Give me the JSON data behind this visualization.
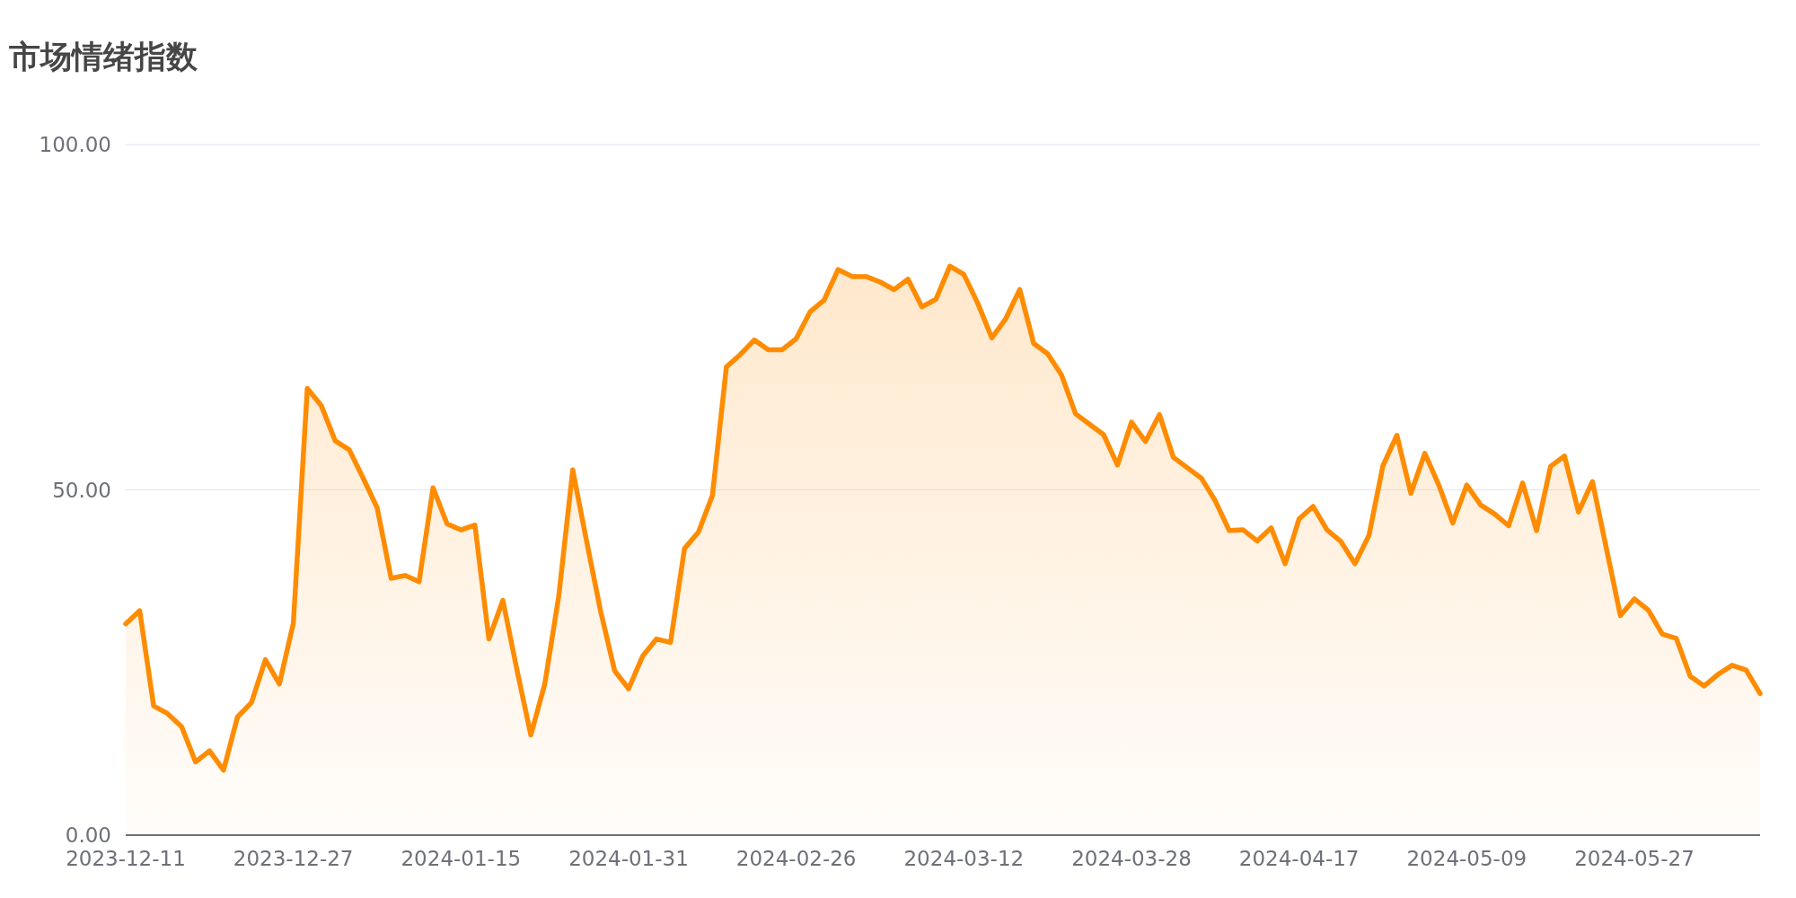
{
  "chart_data": {
    "type": "area",
    "title": "市场情绪指数",
    "categories": [
      "2023-12-11",
      null,
      null,
      null,
      null,
      null,
      null,
      null,
      null,
      null,
      null,
      null,
      "2023-12-27",
      null,
      null,
      null,
      null,
      null,
      null,
      null,
      null,
      null,
      null,
      null,
      "2024-01-15",
      null,
      null,
      null,
      null,
      null,
      null,
      null,
      null,
      null,
      null,
      null,
      "2024-01-31",
      null,
      null,
      null,
      null,
      null,
      null,
      null,
      null,
      null,
      null,
      null,
      "2024-02-26",
      null,
      null,
      null,
      null,
      null,
      null,
      null,
      null,
      null,
      null,
      null,
      "2024-03-12",
      null,
      null,
      null,
      null,
      null,
      null,
      null,
      null,
      null,
      null,
      null,
      "2024-03-28",
      null,
      null,
      null,
      null,
      null,
      null,
      null,
      null,
      null,
      null,
      null,
      "2024-04-17",
      null,
      null,
      null,
      null,
      null,
      null,
      null,
      null,
      null,
      null,
      null,
      "2024-05-09",
      null,
      null,
      null,
      null,
      null,
      null,
      null,
      null,
      null,
      null,
      null,
      "2024-05-27",
      null,
      null,
      null,
      null,
      null,
      null,
      null,
      null,
      null
    ],
    "series": [
      {
        "color": "#ff8c00",
        "values": [
          30.6,
          32.5,
          18.7,
          17.6,
          15.7,
          10.6,
          12.2,
          9.4,
          17.1,
          19.2,
          25.4,
          21.9,
          30.7,
          64.7,
          62.2,
          57.1,
          55.8,
          51.7,
          47.4,
          37.2,
          37.6,
          36.7,
          50.3,
          45.1,
          44.2,
          44.9,
          28.4,
          34.0,
          24.0,
          14.5,
          21.9,
          34.6,
          52.9,
          42.5,
          32.4,
          23.8,
          21.2,
          25.9,
          28.4,
          27.9,
          41.5,
          43.9,
          49.2,
          67.8,
          69.6,
          71.7,
          70.3,
          70.3,
          71.9,
          75.8,
          77.5,
          81.9,
          80.9,
          80.9,
          80.1,
          79.0,
          80.5,
          76.5,
          77.6,
          82.4,
          81.2,
          77.0,
          72.0,
          74.8,
          79.0,
          71.2,
          69.7,
          66.6,
          61.0,
          59.5,
          58.0,
          53.6,
          59.8,
          57.0,
          60.9,
          54.7,
          53.2,
          51.7,
          48.4,
          44.1,
          44.2,
          42.6,
          44.5,
          39.3,
          45.8,
          47.6,
          44.2,
          42.5,
          39.3,
          43.4,
          53.5,
          57.9,
          49.5,
          55.3,
          50.7,
          45.2,
          50.7,
          47.8,
          46.5,
          44.8,
          51.0,
          44.1,
          53.4,
          54.9,
          46.8,
          51.2,
          41.5,
          31.8,
          34.2,
          32.6,
          29.1,
          28.5,
          23.0,
          21.6,
          23.3,
          24.6,
          23.9,
          20.5
        ]
      }
    ],
    "ylim": [
      0,
      100
    ],
    "yticks": [
      {
        "value": 0,
        "label": "0.00"
      },
      {
        "value": 50,
        "label": "50.00"
      },
      {
        "value": 100,
        "label": "100.00"
      }
    ],
    "grid": "y"
  }
}
